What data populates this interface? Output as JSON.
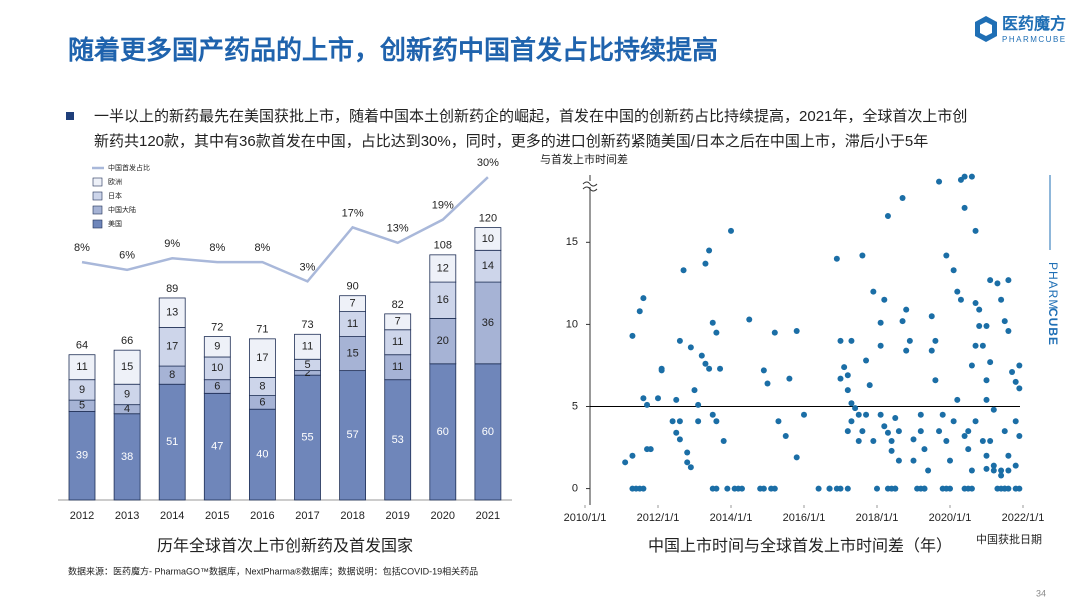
{
  "header": {
    "title": "随着更多国产药品的上市，创新药中国首发占比持续提高",
    "logo_name": "医药魔方",
    "logo_sub": "PHARMCUBE"
  },
  "bullet": {
    "lines": [
      "一半以上的新药最先在美国获批上市，随着中国本土创新药企的崛起，首发在中国的创新药占比持续提高，2021年，全球首次上市创",
      "新药共120款，其中有36款首发在中国，占比达到30%，同时，更多的进口创新药紧随美国/日本之后在中国上市，滞后小于5年"
    ]
  },
  "chart_data": [
    {
      "type": "bar",
      "stacked": true,
      "title": "历年全球首次上市创新药及首发国家",
      "categories": [
        "2012",
        "2013",
        "2014",
        "2015",
        "2016",
        "2017",
        "2018",
        "2019",
        "2020",
        "2021"
      ],
      "series": [
        {
          "name": "美国",
          "color": "#6f86ba",
          "values": [
            39,
            38,
            51,
            47,
            40,
            55,
            57,
            53,
            60,
            60
          ]
        },
        {
          "name": "中国大陆",
          "color": "#a6b3d5",
          "values": [
            5,
            4,
            8,
            6,
            6,
            2,
            15,
            11,
            20,
            36
          ]
        },
        {
          "name": "日本",
          "color": "#cdd5ea",
          "values": [
            9,
            9,
            17,
            10,
            8,
            5,
            11,
            11,
            16,
            14
          ]
        },
        {
          "name": "欧洲",
          "color": "#eef1f8",
          "values": [
            11,
            15,
            13,
            9,
            17,
            11,
            7,
            7,
            12,
            10
          ]
        },
        {
          "name": "中国首发占比",
          "type": "line",
          "color": "#a9b8da",
          "values": [
            8,
            6,
            9,
            8,
            8,
            3,
            17,
            13,
            19,
            30
          ],
          "value_labels": [
            "8%",
            "6%",
            "9%",
            "8%",
            "8%",
            "3%",
            "17%",
            "13%",
            "19%",
            "30%"
          ]
        }
      ],
      "totals": [
        64,
        66,
        89,
        72,
        71,
        73,
        90,
        82,
        108,
        120
      ]
    },
    {
      "type": "scatter",
      "title": "中国上市时间与全球首发上市时间差（年）",
      "xlabel": "中国获批日期",
      "ylabel": "与首发上市时间差",
      "color": "#1b6ea6",
      "xlim": [
        2010,
        2022
      ],
      "xticks": [
        {
          "value": 2010,
          "label": "2010/1/1"
        },
        {
          "value": 2012,
          "label": "2012/1/1"
        },
        {
          "value": 2014,
          "label": "2014/1/1"
        },
        {
          "value": 2016,
          "label": "2016/1/1"
        },
        {
          "value": 2018,
          "label": "2018/1/1"
        },
        {
          "value": 2020,
          "label": "2020/1/1"
        },
        {
          "value": 2022,
          "label": "2022/1/1"
        }
      ],
      "ylim": [
        -1,
        19.1
      ],
      "yticks": [
        0,
        5,
        10,
        15
      ],
      "reference_line": 5,
      "x": [
        2011.1,
        2011.3,
        2011.3,
        2011.4,
        2011.5,
        2011.6,
        2011.3,
        2011.5,
        2011.6,
        2011.6,
        2011.7,
        2011.7,
        2011.8,
        2012.0,
        2012.1,
        2012.1,
        2012.5,
        2012.4,
        2012.6,
        2012.5,
        2012.6,
        2012.6,
        2012.7,
        2012.8,
        2012.8,
        2012.9,
        2012.9,
        2013.0,
        2013.1,
        2013.1,
        2013.2,
        2013.3,
        2013.3,
        2013.4,
        2013.5,
        2013.6,
        2013.5,
        2013.6,
        2013.4,
        2013.5,
        2013.6,
        2013.7,
        2013.8,
        2013.9,
        2014.0,
        2014.1,
        2014.2,
        2014.3,
        2014.5,
        2014.8,
        2014.9,
        2015.1,
        2015.2,
        2014.9,
        2015.0,
        2015.2,
        2015.3,
        2015.5,
        2015.6,
        2015.8,
        2015.8,
        2016.0,
        2016.4,
        2016.7,
        2016.7,
        2016.9,
        2016.9,
        2017.0,
        2017.2,
        2017.0,
        2017.0,
        2017.1,
        2017.2,
        2017.2,
        2017.3,
        2017.3,
        2017.2,
        2017.3,
        2017.5,
        2017.4,
        2017.5,
        2017.6,
        2017.6,
        2017.7,
        2017.8,
        2017.7,
        2017.9,
        2017.9,
        2018.0,
        2018.1,
        2018.1,
        2018.2,
        2018.3,
        2018.3,
        2018.4,
        2018.5,
        2018.5,
        2018.1,
        2018.2,
        2018.3,
        2018.4,
        2018.4,
        2018.5,
        2018.6,
        2018.6,
        2018.7,
        2018.7,
        2018.8,
        2018.8,
        2018.9,
        2019.0,
        2019.0,
        2019.1,
        2019.2,
        2019.3,
        2019.3,
        2019.2,
        2019.2,
        2019.3,
        2019.4,
        2019.5,
        2019.5,
        2019.6,
        2019.6,
        2019.7,
        2019.8,
        2019.9,
        2020.0,
        2019.9,
        2020.1,
        2019.7,
        2019.8,
        2019.9,
        2020.0,
        2020.1,
        2020.2,
        2020.2,
        2020.3,
        2020.3,
        2020.4,
        2020.4,
        2020.5,
        2020.5,
        2020.6,
        2020.4,
        2020.5,
        2020.6,
        2020.4,
        2020.6,
        2020.7,
        2020.7,
        2020.8,
        2020.9,
        2021.0,
        2021.0,
        2021.1,
        2021.2,
        2021.2,
        2021.3,
        2021.4,
        2021.5,
        2021.5,
        2021.6,
        2021.8,
        2021.9,
        2021.1,
        2021.3,
        2021.4,
        2021.5,
        2021.6,
        2021.6,
        2021.7,
        2021.8,
        2021.9,
        2021.9,
        2021.8,
        2021.6,
        2021.5,
        2021.4,
        2021.2,
        2021.1,
        2021.0,
        2020.8,
        2020.7,
        2020.6,
        2020.7,
        2020.9,
        2021.0,
        2021.0,
        2021.4,
        2021.6,
        2021.8,
        2021.9
      ],
      "y": [
        1.6,
        2.0,
        0,
        0,
        0,
        0,
        9.3,
        10.8,
        11.6,
        5.5,
        5.1,
        2.4,
        2.4,
        5.5,
        7.2,
        7.3,
        5.4,
        4.1,
        4.1,
        3.4,
        3.0,
        9.0,
        13.3,
        2.2,
        1.6,
        1.3,
        8.6,
        6.0,
        5.1,
        4.1,
        8.1,
        7.6,
        13.7,
        14.5,
        4.5,
        4.1,
        0,
        0,
        7.3,
        10.1,
        9.5,
        7.3,
        2.9,
        0,
        15.7,
        0,
        0,
        0,
        10.3,
        0,
        0,
        0,
        0,
        7.2,
        6.4,
        9.5,
        4.1,
        3.2,
        6.7,
        9.6,
        1.9,
        4.5,
        0,
        0,
        0,
        14.0,
        0,
        0,
        0,
        9.0,
        6.7,
        7.4,
        6.9,
        3.5,
        4.1,
        5.2,
        6.0,
        9.0,
        4.5,
        4.9,
        2.9,
        3.5,
        14.2,
        4.5,
        6.3,
        7.8,
        12.0,
        2.9,
        0,
        8.7,
        10.1,
        11.5,
        16.6,
        0,
        0,
        0,
        0,
        4.5,
        3.8,
        3.4,
        2.9,
        2.3,
        4.3,
        3.5,
        1.7,
        10.2,
        17.7,
        10.9,
        8.4,
        9.0,
        3.0,
        1.7,
        0,
        0,
        0,
        0,
        4.5,
        3.5,
        2.4,
        1.1,
        10.5,
        8.4,
        9.0,
        6.6,
        18.7,
        0,
        0,
        0,
        14.2,
        13.3,
        3.5,
        4.5,
        2.9,
        1.7,
        4.1,
        5.4,
        12.0,
        11.5,
        18.8,
        17.1,
        3.2,
        2.4,
        3.5,
        1.1,
        0,
        0,
        0,
        19.0,
        19.0,
        15.7,
        11.3,
        9.9,
        8.7,
        6.6,
        5.4,
        2.9,
        1.4,
        1.1,
        0,
        0,
        0,
        0,
        0,
        0,
        0,
        12.7,
        12.5,
        11.5,
        10.2,
        12.7,
        9.6,
        7.1,
        6.5,
        6.1,
        3.2,
        1.4,
        2.0,
        3.5,
        1.1,
        4.8,
        7.7,
        9.9,
        10.9,
        8.7,
        7.5,
        4.1,
        2.9,
        2.0,
        1.2,
        0.8,
        1.1,
        4.1,
        7.5
      ]
    }
  ],
  "footer": {
    "source": "数据来源：医药魔方- PharmaGO™数据库，NextPharma®数据库；数据说明：包括COVID-19相关药品",
    "page": "34"
  },
  "side_brand": [
    "PHARM",
    "CUBE"
  ]
}
